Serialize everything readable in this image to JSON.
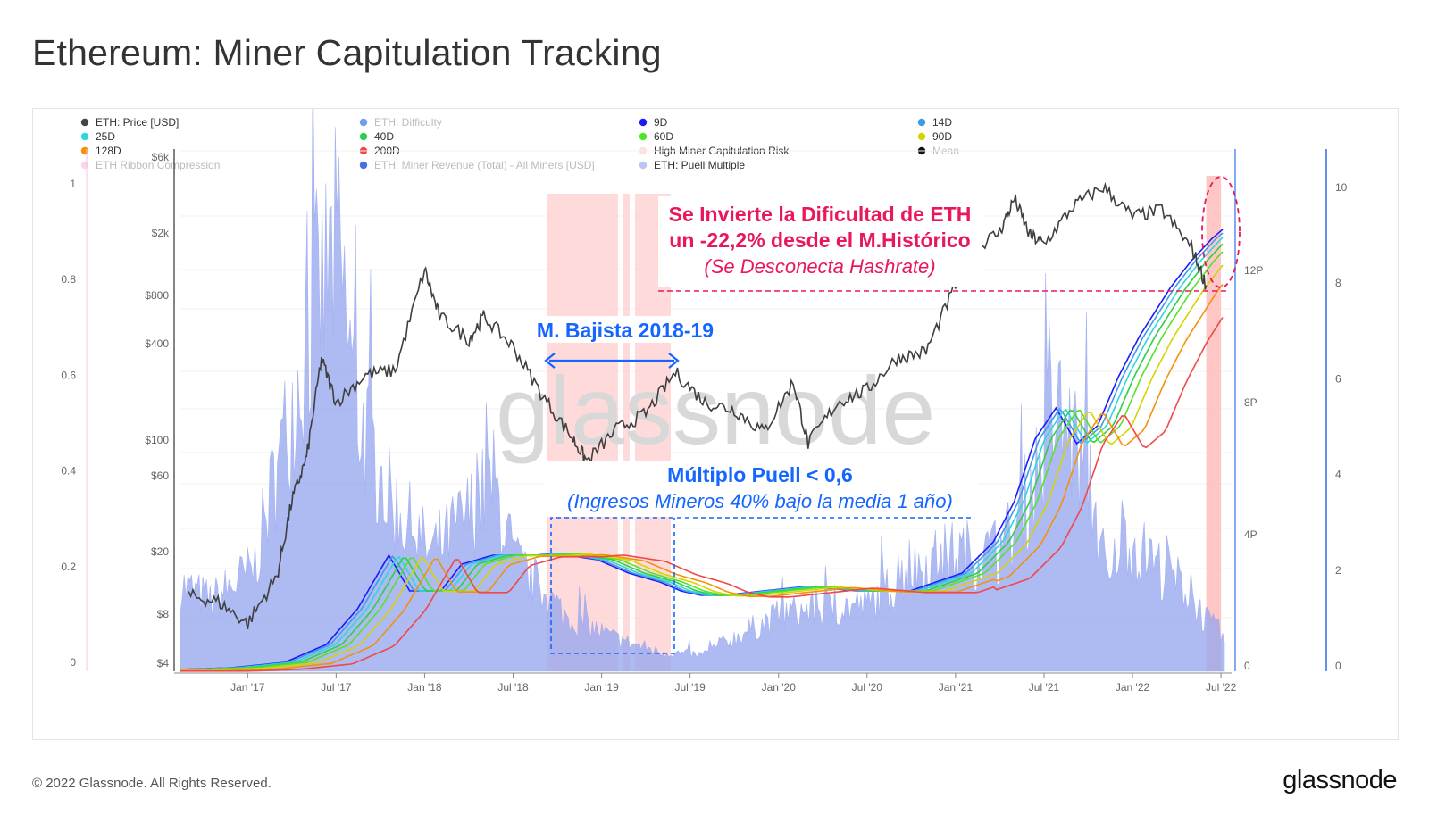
{
  "page": {
    "title": "Ethereum: Miner Capitulation Tracking",
    "copyright": "© 2022 Glassnode. All Rights Reserved.",
    "logo_text": "glassnode"
  },
  "chart_data": {
    "type": "line",
    "watermark": "glassnode",
    "legend": [
      {
        "label": "ETH: Price [USD]",
        "color": "#444444",
        "muted": false
      },
      {
        "label": "ETH: Difficulty",
        "color": "#6f9cf0",
        "muted": true
      },
      {
        "label": "9D",
        "color": "#1a1aff",
        "muted": false
      },
      {
        "label": "14D",
        "color": "#3f9be8",
        "muted": false
      },
      {
        "label": "25D",
        "color": "#2fd8d8",
        "muted": false
      },
      {
        "label": "40D",
        "color": "#2fce4a",
        "muted": false
      },
      {
        "label": "60D",
        "color": "#55e22b",
        "muted": false
      },
      {
        "label": "90D",
        "color": "#d4d400",
        "muted": false
      },
      {
        "label": "128D",
        "color": "#f5900d",
        "muted": false
      },
      {
        "label": "200D",
        "color": "#f04848",
        "muted": false
      },
      {
        "label": "High Miner Capitulation Risk",
        "color": "#fde0e0",
        "muted": false
      },
      {
        "label": "Mean",
        "color": "#111111",
        "muted": true
      },
      {
        "label": "ETH Ribbon Compression",
        "color": "#f8d6ee",
        "muted": true
      },
      {
        "label": "ETH: Miner Revenue (Total) - All Miners [USD]",
        "color": "#4a6fe0",
        "muted": true
      },
      {
        "label": "ETH: Puell Multiple",
        "color": "#b9c6f4",
        "muted": false
      }
    ],
    "x_ticks": [
      "Jan '17",
      "Jul '17",
      "Jan '18",
      "Jul '18",
      "Jan '19",
      "Jul '19",
      "Jan '20",
      "Jul '20",
      "Jan '21",
      "Jul '21",
      "Jan '22",
      "Jul '22"
    ],
    "price_axis_ticks": [
      "$6k",
      "$2k",
      "$800",
      "$400",
      "$100",
      "$60",
      "$20",
      "$8",
      "$4"
    ],
    "ribbon_axis_ticks": [
      "1",
      "0.8",
      "0.6",
      "0.4",
      "0.2",
      "0"
    ],
    "difficulty_axis_ticks": [
      "12P",
      "8P",
      "4P",
      "0"
    ],
    "puell_axis_ticks": [
      "10",
      "8",
      "6",
      "4",
      "2",
      "0"
    ],
    "price_usd": {
      "dates": [
        "2016-09",
        "2016-11",
        "2017-01",
        "2017-03",
        "2017-04",
        "2017-05",
        "2017-06",
        "2017-07",
        "2017-09",
        "2017-11",
        "2018-01",
        "2018-02",
        "2018-04",
        "2018-05",
        "2018-07",
        "2018-09",
        "2018-11",
        "2018-12",
        "2019-02",
        "2019-04",
        "2019-06",
        "2019-08",
        "2019-10",
        "2019-12",
        "2020-02",
        "2020-03",
        "2020-05",
        "2020-07",
        "2020-09",
        "2020-11",
        "2021-01",
        "2021-02",
        "2021-04",
        "2021-05",
        "2021-06",
        "2021-07",
        "2021-09",
        "2021-11",
        "2022-01",
        "2022-03",
        "2022-05",
        "2022-06"
      ],
      "values": [
        12,
        11,
        8,
        16,
        48,
        90,
        380,
        200,
        300,
        320,
        1380,
        700,
        500,
        700,
        450,
        220,
        120,
        85,
        135,
        170,
        310,
        200,
        180,
        130,
        270,
        110,
        200,
        240,
        380,
        420,
        1100,
        1800,
        2400,
        3900,
        2300,
        2000,
        3500,
        4600,
        3000,
        3300,
        1900,
        1100
      ]
    },
    "miner_capitulation_periods": [
      [
        "2018-08",
        "2019-06"
      ],
      [
        "2022-06",
        "2022-07"
      ]
    ],
    "difficulty_drawdown": {
      "drop_pct": -22.2,
      "reference": "M.Histórico"
    },
    "annotations": {
      "difficulty_title_line1": "Se Invierte la Dificultad de ETH",
      "difficulty_title_line2": "un -22,2% desde el M.Histórico",
      "difficulty_subtitle": "(Se Desconecta Hashrate)",
      "bear_market": "M. Bajista 2018-19",
      "puell_title": "Múltiplo Puell < 0,6",
      "puell_subtitle": "(Ingresos Mineros 40% bajo la media 1 año)"
    },
    "log_scale_price": true
  }
}
